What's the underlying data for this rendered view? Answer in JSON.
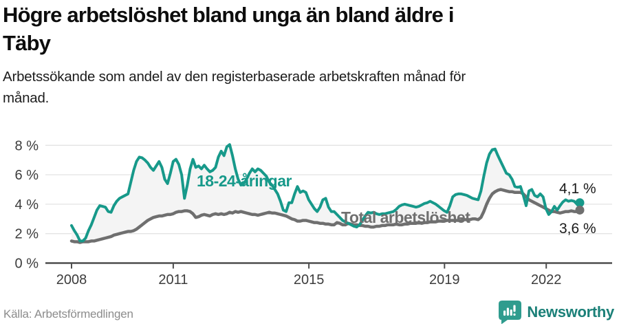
{
  "header": {
    "title": "Högre arbetslöshet bland unga än bland äldre i\nTäby",
    "subtitle": "Arbetssökande som andel av den registerbaserade arbetskraften månad för\nmånad."
  },
  "footer": {
    "source": "Källa: Arbetsförmedlingen",
    "brand": "Newsworthy"
  },
  "colors": {
    "youth_line": "#17998a",
    "total_line": "#6f6f6f",
    "fill_between": "#f4f4f4",
    "gridline": "#e3e3e3",
    "axis_line": "#4d4d4d",
    "axis_text": "#3c3c3c",
    "end_label_text": "#1a1a1a",
    "brand_teal": "#2f9c8e",
    "brand_text": "#1b8078"
  },
  "chart_data": {
    "type": "line",
    "title": "Högre arbetslöshet bland unga än bland äldre i Täby",
    "subtitle": "Arbetssökande som andel av den registerbaserade arbetskraften månad för månad.",
    "unit": "%",
    "frequency": "monthly",
    "x_start": "2008-01",
    "x_end": "2023-01",
    "x_tick_years": [
      2008,
      2011,
      2015,
      2019,
      2022
    ],
    "x_tick_labels": [
      "2008",
      "2011",
      "2015",
      "2019",
      "2022"
    ],
    "y_ticks": [
      0,
      2,
      4,
      6,
      8
    ],
    "ylim": [
      0,
      8.6
    ],
    "grid": true,
    "legend_position": "inline-labels",
    "series": [
      {
        "name": "18-24-åringar",
        "color": "#17998a",
        "end_value": 4.1,
        "end_label": "4,1 %",
        "values": [
          2.55,
          2.2,
          1.9,
          1.5,
          1.5,
          1.7,
          2.2,
          2.6,
          3.1,
          3.6,
          3.9,
          3.85,
          3.8,
          3.5,
          3.45,
          3.9,
          4.2,
          4.4,
          4.5,
          4.6,
          4.7,
          5.5,
          6.3,
          6.9,
          7.2,
          7.15,
          7.0,
          6.8,
          6.5,
          6.3,
          6.6,
          6.9,
          6.5,
          5.7,
          5.4,
          6.1,
          6.9,
          7.05,
          6.7,
          6.0,
          4.4,
          5.3,
          6.4,
          7.05,
          6.5,
          6.6,
          6.4,
          6.65,
          6.4,
          6.2,
          6.3,
          6.5,
          7.2,
          7.6,
          7.3,
          7.9,
          8.05,
          7.3,
          6.4,
          5.7,
          5.3,
          5.4,
          5.7,
          6.1,
          6.4,
          6.2,
          6.4,
          6.3,
          6.1,
          5.9,
          5.5,
          5.3,
          5.0,
          4.7,
          4.2,
          3.6,
          3.5,
          4.1,
          4.1,
          4.7,
          5.2,
          4.8,
          4.9,
          4.8,
          4.3,
          4.0,
          3.7,
          3.5,
          3.8,
          4.3,
          4.4,
          3.8,
          3.5,
          3.5,
          3.3,
          3.1,
          2.9,
          2.8,
          2.7,
          2.6,
          2.5,
          2.45,
          2.6,
          2.9,
          3.2,
          3.45,
          3.4,
          3.45,
          3.35,
          3.3,
          3.35,
          3.35,
          3.4,
          3.45,
          3.5,
          3.65,
          3.85,
          3.95,
          4.0,
          3.95,
          3.9,
          3.85,
          3.8,
          3.85,
          3.95,
          4.05,
          4.1,
          4.2,
          4.1,
          4.0,
          3.85,
          3.7,
          3.55,
          3.45,
          3.9,
          4.5,
          4.65,
          4.7,
          4.7,
          4.65,
          4.6,
          4.5,
          4.4,
          4.35,
          4.3,
          4.9,
          5.9,
          6.8,
          7.4,
          7.7,
          7.75,
          7.3,
          6.9,
          6.5,
          6.1,
          6.0,
          5.7,
          5.2,
          5.15,
          5.2,
          4.6,
          3.9,
          4.9,
          5.0,
          4.6,
          4.5,
          4.7,
          4.5,
          3.7,
          3.3,
          3.5,
          3.85,
          3.6,
          3.9,
          4.15,
          4.3,
          4.2,
          4.25,
          4.2,
          4.0,
          4.1
        ]
      },
      {
        "name": "Total arbetslöshet",
        "color": "#6f6f6f",
        "end_value": 3.6,
        "end_label": "3,6 %",
        "values": [
          1.5,
          1.45,
          1.45,
          1.4,
          1.45,
          1.45,
          1.45,
          1.5,
          1.5,
          1.55,
          1.6,
          1.65,
          1.7,
          1.75,
          1.8,
          1.9,
          1.95,
          2.0,
          2.05,
          2.1,
          2.15,
          2.15,
          2.2,
          2.3,
          2.45,
          2.6,
          2.75,
          2.9,
          3.0,
          3.1,
          3.15,
          3.2,
          3.2,
          3.25,
          3.3,
          3.3,
          3.35,
          3.45,
          3.5,
          3.5,
          3.55,
          3.55,
          3.5,
          3.35,
          3.1,
          3.15,
          3.25,
          3.3,
          3.25,
          3.2,
          3.3,
          3.35,
          3.3,
          3.35,
          3.3,
          3.35,
          3.45,
          3.4,
          3.5,
          3.45,
          3.5,
          3.45,
          3.4,
          3.35,
          3.3,
          3.3,
          3.25,
          3.3,
          3.35,
          3.4,
          3.45,
          3.4,
          3.4,
          3.35,
          3.3,
          3.25,
          3.2,
          3.1,
          3.0,
          2.95,
          2.85,
          2.85,
          2.9,
          2.9,
          2.85,
          2.8,
          2.75,
          2.75,
          2.7,
          2.7,
          2.65,
          2.65,
          2.6,
          2.6,
          2.75,
          2.7,
          2.6,
          2.6,
          2.7,
          2.65,
          2.6,
          2.6,
          2.55,
          2.55,
          2.5,
          2.5,
          2.45,
          2.45,
          2.5,
          2.5,
          2.55,
          2.55,
          2.6,
          2.6,
          2.6,
          2.65,
          2.6,
          2.6,
          2.65,
          2.65,
          2.7,
          2.7,
          2.7,
          2.75,
          2.7,
          2.75,
          2.75,
          2.8,
          2.8,
          2.8,
          2.85,
          2.85,
          2.85,
          2.9,
          2.9,
          2.9,
          2.9,
          2.9,
          2.9,
          2.95,
          2.95,
          2.95,
          3.0,
          3.0,
          2.95,
          3.1,
          3.5,
          4.0,
          4.4,
          4.7,
          4.85,
          4.95,
          5.0,
          4.95,
          4.9,
          4.85,
          4.85,
          4.8,
          4.8,
          4.8,
          4.7,
          4.5,
          4.3,
          4.2,
          4.1,
          4.0,
          3.9,
          3.8,
          3.7,
          3.6,
          3.5,
          3.5,
          3.45,
          3.4,
          3.45,
          3.5,
          3.5,
          3.55,
          3.5,
          3.5,
          3.6
        ]
      }
    ]
  }
}
